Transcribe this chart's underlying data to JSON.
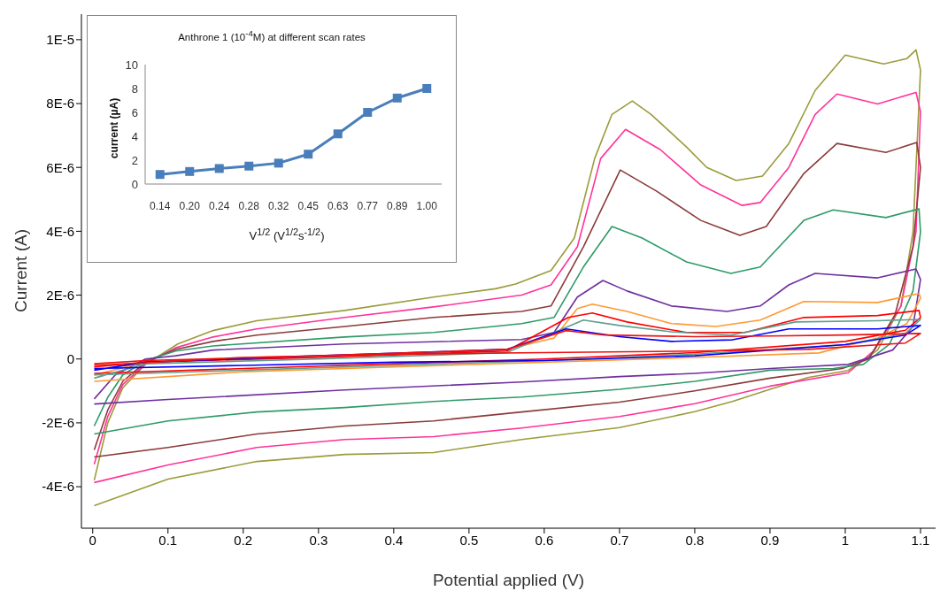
{
  "chart_data": [
    {
      "type": "line",
      "xlabel": "Potential applied (V)",
      "ylabel": "Current (A)",
      "marker": "none",
      "xlim": [
        -0.015,
        1.12
      ],
      "ylim": [
        -5.3e-06,
        1.08e-05
      ],
      "xticks": [
        0,
        0.1,
        0.2,
        0.3,
        0.4,
        0.5,
        0.6,
        0.7,
        0.8,
        0.9,
        1,
        1.1
      ],
      "yticks": [
        {
          "value": -4e-06,
          "label": "-4E-6"
        },
        {
          "value": -2e-06,
          "label": "-2E-6"
        },
        {
          "value": 0,
          "label": "0"
        },
        {
          "value": 2e-06,
          "label": "2E-6"
        },
        {
          "value": 4e-06,
          "label": "4E-6"
        },
        {
          "value": 6e-06,
          "label": "6E-6"
        },
        {
          "value": 8e-06,
          "label": "8E-6"
        },
        {
          "value": 1e-05,
          "label": "1E-5"
        }
      ],
      "series": [
        {
          "color": "#9b9b3b",
          "x": [
            0.002,
            0.02,
            0.04,
            0.07,
            0.113,
            0.16,
            0.218,
            0.335,
            0.453,
            0.535,
            0.562,
            0.609,
            0.64,
            0.667,
            0.69,
            0.717,
            0.742,
            0.789,
            0.816,
            0.855,
            0.89,
            0.925,
            0.96,
            1.0,
            1.051,
            1.082,
            1.094,
            1.1,
            1.09,
            1.074,
            1.043,
            1.004,
            0.95,
            0.9,
            0.85,
            0.8,
            0.7,
            0.57,
            0.453,
            0.335,
            0.218,
            0.1,
            0.002
          ],
          "values": [
            -3.8e-06,
            -2e-06,
            -9e-07,
            -1.7e-07,
            4.7e-07,
            8.9e-07,
            1.2e-06,
            1.52e-06,
            1.94e-06,
            2.2e-06,
            2.35e-06,
            2.77e-06,
            3.79e-06,
            6.28e-06,
            7.66e-06,
            8.08e-06,
            7.66e-06,
            6.64e-06,
            6e-06,
            5.59e-06,
            5.73e-06,
            6.75e-06,
            8.41e-06,
            9.52e-06,
            9.24e-06,
            9.41e-06,
            9.68e-06,
            9.05e-06,
            3.98e-06,
            1.66e-06,
            2.8e-07,
            -3.6e-07,
            -5.8e-07,
            -9.5e-07,
            -1.33e-06,
            -1.65e-06,
            -2.15e-06,
            -2.52e-06,
            -2.93e-06,
            -2.99e-06,
            -3.21e-06,
            -3.76e-06,
            -4.59e-06
          ]
        },
        {
          "color": "#ff3399",
          "x": [
            0.002,
            0.02,
            0.04,
            0.07,
            0.11,
            0.16,
            0.218,
            0.335,
            0.453,
            0.57,
            0.609,
            0.644,
            0.675,
            0.708,
            0.754,
            0.808,
            0.863,
            0.887,
            0.925,
            0.96,
            0.989,
            1.043,
            1.094,
            1.1,
            1.094,
            1.074,
            1.039,
            1.004,
            0.9,
            0.8,
            0.7,
            0.57,
            0.453,
            0.335,
            0.218,
            0.1,
            0.002
          ],
          "values": [
            -3.3e-06,
            -1.8e-06,
            -8e-07,
            -1.5e-07,
            3.5e-07,
            6.9e-07,
            9.4e-07,
            1.3e-06,
            1.63e-06,
            2e-06,
            2.32e-06,
            3.51e-06,
            6.28e-06,
            7.19e-06,
            6.56e-06,
            5.45e-06,
            4.81e-06,
            4.9e-06,
            6e-06,
            7.66e-06,
            8.3e-06,
            7.99e-06,
            8.35e-06,
            7.75e-06,
            3.98e-06,
            1.66e-06,
            2.8e-07,
            -4.3e-07,
            -8.5e-07,
            -1.4e-06,
            -1.8e-06,
            -2.16e-06,
            -2.43e-06,
            -2.52e-06,
            -2.77e-06,
            -3.32e-06,
            -3.87e-06
          ]
        },
        {
          "color": "#8b3a3a",
          "x": [
            0.002,
            0.02,
            0.04,
            0.07,
            0.11,
            0.16,
            0.218,
            0.335,
            0.453,
            0.57,
            0.609,
            0.652,
            0.701,
            0.749,
            0.808,
            0.86,
            0.895,
            0.945,
            0.989,
            1.054,
            1.095,
            1.1,
            1.09,
            1.066,
            1.031,
            0.996,
            0.9,
            0.8,
            0.7,
            0.57,
            0.453,
            0.335,
            0.218,
            0.1,
            0.002
          ],
          "values": [
            -2.85e-06,
            -1.6e-06,
            -7e-07,
            -1e-07,
            3e-07,
            5.5e-07,
            7.5e-07,
            1.02e-06,
            1.3e-06,
            1.49e-06,
            1.66e-06,
            3.51e-06,
            5.92e-06,
            5.26e-06,
            4.34e-06,
            3.87e-06,
            4.15e-06,
            5.81e-06,
            6.75e-06,
            6.47e-06,
            6.78e-06,
            6e-06,
            3.51e-06,
            1.38e-06,
            0.0,
            -3e-07,
            -6e-07,
            -1e-06,
            -1.35e-06,
            -1.66e-06,
            -1.94e-06,
            -2.1e-06,
            -2.35e-06,
            -2.77e-06,
            -3.07e-06
          ]
        },
        {
          "color": "#2e9a68",
          "x": [
            0.002,
            0.02,
            0.04,
            0.07,
            0.11,
            0.16,
            0.335,
            0.453,
            0.57,
            0.613,
            0.652,
            0.69,
            0.73,
            0.789,
            0.848,
            0.887,
            0.945,
            0.984,
            1.054,
            1.098,
            1.1,
            1.09,
            1.059,
            1.024,
            0.984,
            0.9,
            0.8,
            0.7,
            0.57,
            0.453,
            0.335,
            0.218,
            0.1,
            0.002
          ],
          "values": [
            -2.1e-06,
            -1.2e-06,
            -5e-07,
            -5e-08,
            2.5e-07,
            4.1e-07,
            6.9e-07,
            8.3e-07,
            1.11e-06,
            1.3e-06,
            2.88e-06,
            4.15e-06,
            3.79e-06,
            3.04e-06,
            2.68e-06,
            2.88e-06,
            4.34e-06,
            4.67e-06,
            4.43e-06,
            4.7e-06,
            3.98e-06,
            2.13e-06,
            4.7e-07,
            -1.7e-07,
            -3e-07,
            -3.5e-07,
            -7e-07,
            -9.5e-07,
            -1.19e-06,
            -1.33e-06,
            -1.52e-06,
            -1.66e-06,
            -1.94e-06,
            -2.35e-06
          ]
        },
        {
          "color": "#7030a0",
          "x": [
            0.002,
            0.03,
            0.07,
            0.11,
            0.16,
            0.335,
            0.57,
            0.613,
            0.644,
            0.678,
            0.71,
            0.769,
            0.843,
            0.887,
            0.925,
            0.96,
            1.043,
            1.094,
            1.1,
            1.09,
            1.063,
            1.004,
            0.9,
            0.8,
            0.7,
            0.57,
            0.335,
            0.1,
            0.002
          ],
          "values": [
            -1.25e-06,
            -5e-07,
            0.0,
            1e-07,
            2.8e-07,
            4.7e-07,
            6.1e-07,
            8.3e-07,
            1.94e-06,
            2.46e-06,
            2.13e-06,
            1.66e-06,
            1.49e-06,
            1.66e-06,
            2.32e-06,
            2.68e-06,
            2.54e-06,
            2.82e-06,
            2.49e-06,
            1.02e-06,
            2.8e-07,
            -1.7e-07,
            -3e-07,
            -4.5e-07,
            -5.5e-07,
            -7.2e-07,
            -9.7e-07,
            -1.27e-06,
            -1.41e-06
          ]
        },
        {
          "color": "#ff9933",
          "x": [
            0.002,
            0.07,
            0.2,
            0.4,
            0.55,
            0.613,
            0.644,
            0.664,
            0.71,
            0.769,
            0.828,
            0.887,
            0.945,
            1.043,
            1.098,
            1.1,
            1.082,
            1.043,
            0.965,
            0.8,
            0.6,
            0.4,
            0.2,
            0.002
          ],
          "values": [
            -5e-07,
            -1e-07,
            5e-08,
            1.5e-07,
            3e-07,
            6.6e-07,
            1.58e-06,
            1.72e-06,
            1.49e-06,
            1.11e-06,
            1.02e-06,
            1.22e-06,
            1.8e-06,
            1.77e-06,
            2.05e-06,
            1.91e-06,
            1.11e-06,
            6.6e-07,
            1.9e-07,
            5e-08,
            -1e-07,
            -2.5e-07,
            -4e-07,
            -7e-07
          ]
        },
        {
          "color": "#ff0000",
          "x": [
            0.002,
            0.07,
            0.3,
            0.55,
            0.632,
            0.664,
            0.71,
            0.789,
            0.867,
            0.945,
            1.043,
            1.098,
            1.1,
            1.08,
            1.0,
            0.8,
            0.6,
            0.4,
            0.2,
            0.002
          ],
          "values": [
            -2.5e-07,
            -1e-07,
            5e-08,
            2.5e-07,
            1.3e-06,
            1.44e-06,
            1.16e-06,
            8.3e-07,
            8.3e-07,
            1.3e-06,
            1.36e-06,
            1.52e-06,
            1.3e-06,
            9e-07,
            5.5e-07,
            2e-07,
            0.0,
            -1.5e-07,
            -3e-07,
            -4.5e-07
          ]
        },
        {
          "color": "#5f9e8f",
          "x": [
            0.002,
            0.07,
            0.3,
            0.55,
            0.652,
            0.7,
            0.769,
            0.848,
            0.934,
            1.043,
            1.1,
            1.08,
            1.0,
            0.8,
            0.6,
            0.4,
            0.2,
            0.002
          ],
          "values": [
            -6e-07,
            -1.5e-07,
            0.0,
            2e-07,
            1.22e-06,
            1.05e-06,
            8.5e-07,
            7.5e-07,
            1.16e-06,
            1.2e-06,
            1.24e-06,
            8e-07,
            4.5e-07,
            1.5e-07,
            -5e-08,
            -2e-07,
            -3.5e-07,
            -5e-07
          ]
        },
        {
          "color": "#0000ff",
          "x": [
            0.002,
            0.07,
            0.3,
            0.55,
            0.629,
            0.7,
            0.769,
            0.85,
            0.925,
            1.043,
            1.1,
            1.08,
            1.0,
            0.8,
            0.6,
            0.4,
            0.2,
            0.002
          ],
          "values": [
            -3.5e-07,
            -1e-07,
            1e-07,
            3e-07,
            9.4e-07,
            7e-07,
            5.5e-07,
            6e-07,
            9.4e-07,
            9.4e-07,
            1.05e-06,
            7.5e-07,
            4.5e-07,
            1e-07,
            -5e-08,
            -1e-07,
            -2e-07,
            -3e-07
          ]
        },
        {
          "color": "#ee1111",
          "x": [
            0.002,
            0.07,
            0.3,
            0.55,
            0.629,
            0.68,
            0.8,
            0.9,
            1.0,
            1.1,
            1.08,
            0.95,
            0.8,
            0.6,
            0.4,
            0.2,
            0.002
          ],
          "values": [
            -1.5e-07,
            -5e-08,
            1e-07,
            3e-07,
            8.9e-07,
            7.5e-07,
            7e-07,
            7.2e-07,
            7.5e-07,
            8e-07,
            5e-07,
            3e-07,
            2.5e-07,
            2e-07,
            1.5e-07,
            5e-08,
            -2e-07
          ]
        }
      ]
    },
    {
      "type": "line",
      "title": "Anthrone 1 (10$^{-4}$M) at different scan rates",
      "xlabel": "V$^{1/2}$ (V$^{1/2}$s$^{-1/2}$)",
      "ylabel": "current (µA)",
      "marker": "square",
      "ylim": [
        0,
        10
      ],
      "yticks": [
        0,
        2,
        4,
        6,
        8,
        10
      ],
      "categories": [
        "0.14",
        "0.20",
        "0.24",
        "0.28",
        "0.32",
        "0.45",
        "0.63",
        "0.77",
        "0.89",
        "1.00"
      ],
      "series": [
        {
          "color": "#4a7ebb",
          "values": [
            0.8,
            1.05,
            1.3,
            1.5,
            1.75,
            2.5,
            4.2,
            6.0,
            7.2,
            8.0
          ]
        }
      ]
    }
  ]
}
